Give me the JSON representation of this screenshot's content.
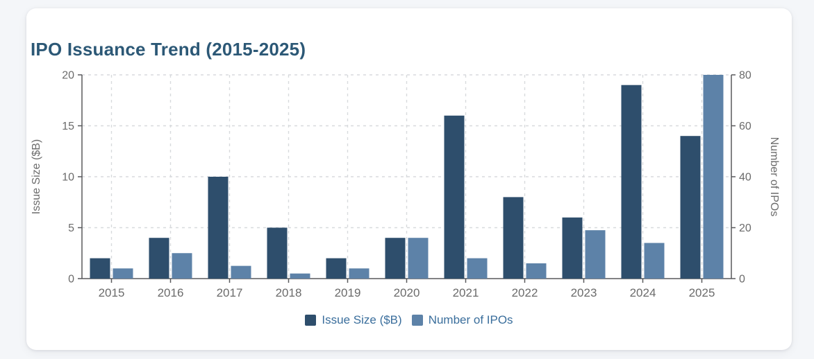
{
  "chart_data": {
    "type": "bar",
    "title": "IPO Issuance Trend (2015-2025)",
    "categories": [
      "2015",
      "2016",
      "2017",
      "2018",
      "2019",
      "2020",
      "2021",
      "2022",
      "2023",
      "2024",
      "2025"
    ],
    "series": [
      {
        "name": "Issue Size ($B)",
        "axis": "left",
        "color": "#2e4e6c",
        "values": [
          2,
          4,
          10,
          5,
          2,
          4,
          16,
          8,
          6,
          19,
          14
        ]
      },
      {
        "name": "Number of IPOs",
        "axis": "right",
        "color": "#5d82a8",
        "values": [
          4,
          10,
          5,
          2,
          4,
          16,
          8,
          6,
          19,
          14,
          80
        ]
      }
    ],
    "left_axis": {
      "label": "Issue Size ($B)",
      "ticks": [
        0,
        5,
        10,
        15,
        20
      ],
      "min": 0,
      "max": 20
    },
    "right_axis": {
      "label": "Number of IPOs",
      "ticks": [
        0,
        20,
        40,
        60,
        80
      ],
      "min": 0,
      "max": 80
    },
    "grid": "dashed",
    "legend_position": "bottom",
    "colors": {
      "page_background": "#f4f6f9",
      "card_background": "#ffffff",
      "title_text": "#2c5876",
      "legend_text": "#3a6e9c",
      "axis_text": "#6b6b6b",
      "axis_line": "#58595c",
      "grid_line": "#d8dadd"
    }
  }
}
